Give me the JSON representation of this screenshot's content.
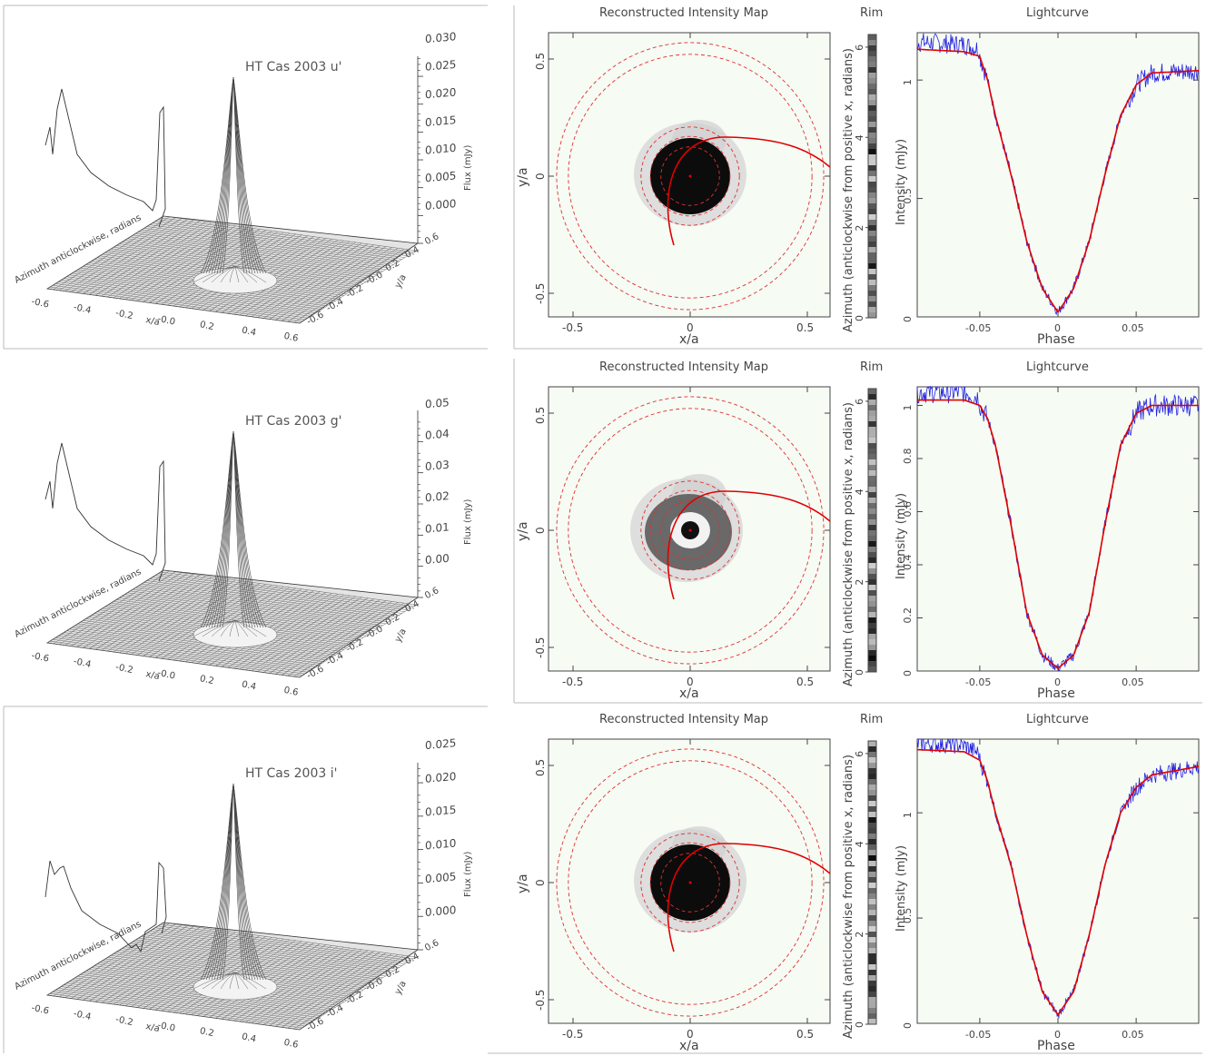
{
  "panel_titles": {
    "map": "Reconstructed Intensity Map",
    "rim": "Rim",
    "lightcurve": "Lightcurve"
  },
  "map_axes": {
    "xlabel": "x/a",
    "ylabel": "y/a",
    "ticks": [
      -0.5,
      0,
      0.5
    ],
    "tick_labels": [
      "-0.5",
      "0",
      "0.5"
    ]
  },
  "rim_axis": {
    "label": "Azimuth (anticlockwise from positive x, radians)",
    "ticks": [
      0,
      2,
      4,
      6
    ],
    "tick_labels": [
      "0",
      "2",
      "4",
      "6"
    ]
  },
  "lightcurve_axes": {
    "xlabel": "Phase",
    "ylabel": "Intensity (mJy)",
    "xticks": [
      -0.05,
      0,
      0.05
    ],
    "xtick_labels": [
      "-0.05",
      "0",
      "0.05"
    ]
  },
  "surface_axes": {
    "flux_label": "Flux (mJy)",
    "azimuth_label": "Azimuth anticlockwise, radians",
    "x_label": "x/a",
    "y_label": "y/a",
    "xy_ticks": [
      -0.6,
      -0.4,
      -0.2,
      -0.0,
      0.2,
      0.4,
      0.6
    ],
    "xy_tick_labels": [
      "-0.6",
      "-0.4",
      "-0.2",
      "-0.0",
      "0.2",
      "0.4",
      "0.6"
    ],
    "y_tick_labels_back": [
      "-0.6",
      "-0.4",
      "-0.2",
      "-0.0",
      "0.2",
      "0.4",
      "0.6"
    ]
  },
  "colors": {
    "model": "#e00000",
    "data": "#2020e0",
    "rings": "#e03030",
    "panel_bg": "#f6fbf4"
  },
  "rows": [
    {
      "surface_title": "HT Cas 2003 u'",
      "flux_ticks": [
        0.0,
        0.005,
        0.01,
        0.015,
        0.02,
        0.025,
        0.03
      ],
      "flux_tick_labels": [
        "0.000",
        "0.005",
        "0.010",
        "0.015",
        "0.020",
        "0.025",
        "0.030"
      ],
      "lc_yticks": [
        0,
        0.5,
        1
      ],
      "lc_ytick_labels": [
        "0",
        "0.5",
        "1"
      ],
      "lc_ymax": 1.2,
      "chart_data": {
        "type": "line",
        "xlabel": "Phase",
        "ylabel": "Intensity (mJy)",
        "xlim": [
          -0.09,
          0.09
        ],
        "ylim": [
          0,
          1.2
        ],
        "series": [
          {
            "name": "model",
            "x": [
              -0.09,
              -0.06,
              -0.05,
              -0.045,
              -0.04,
              -0.03,
              -0.02,
              -0.01,
              0,
              0.01,
              0.02,
              0.03,
              0.04,
              0.05,
              0.06,
              0.09
            ],
            "values": [
              1.13,
              1.12,
              1.1,
              1.0,
              0.85,
              0.6,
              0.32,
              0.12,
              0.02,
              0.12,
              0.32,
              0.6,
              0.85,
              0.98,
              1.03,
              1.04
            ]
          }
        ]
      }
    },
    {
      "surface_title": "HT Cas 2003 g'",
      "flux_ticks": [
        0.0,
        0.01,
        0.02,
        0.03,
        0.04,
        0.05
      ],
      "flux_tick_labels": [
        "0.00",
        "0.01",
        "0.02",
        "0.03",
        "0.04",
        "0.05"
      ],
      "lc_yticks": [
        0,
        0.2,
        0.4,
        0.6,
        0.8,
        1
      ],
      "lc_ytick_labels": [
        "0",
        "0.2",
        "0.4",
        "0.6",
        "0.8",
        "1"
      ],
      "lc_ymax": 1.07,
      "chart_data": {
        "type": "line",
        "xlabel": "Phase",
        "ylabel": "Intensity (mJy)",
        "xlim": [
          -0.09,
          0.09
        ],
        "ylim": [
          0,
          1.07
        ],
        "series": [
          {
            "name": "model",
            "x": [
              -0.09,
              -0.06,
              -0.05,
              -0.045,
              -0.04,
              -0.03,
              -0.02,
              -0.01,
              0,
              0.01,
              0.02,
              0.03,
              0.04,
              0.05,
              0.06,
              0.09
            ],
            "values": [
              1.02,
              1.02,
              1.0,
              0.95,
              0.85,
              0.55,
              0.22,
              0.06,
              0.01,
              0.06,
              0.22,
              0.55,
              0.85,
              0.97,
              1.0,
              1.0
            ]
          }
        ]
      }
    },
    {
      "surface_title": "HT Cas 2003 i'",
      "flux_ticks": [
        0.0,
        0.005,
        0.01,
        0.015,
        0.02,
        0.025
      ],
      "flux_tick_labels": [
        "0.000",
        "0.005",
        "0.010",
        "0.015",
        "0.020",
        "0.025"
      ],
      "lc_yticks": [
        0,
        0.5,
        1
      ],
      "lc_ytick_labels": [
        "0",
        "0.5",
        "1"
      ],
      "lc_ymax": 1.35,
      "chart_data": {
        "type": "line",
        "xlabel": "Phase",
        "ylabel": "Intensity (mJy)",
        "xlim": [
          -0.09,
          0.09
        ],
        "ylim": [
          0,
          1.35
        ],
        "series": [
          {
            "name": "model",
            "x": [
              -0.09,
              -0.06,
              -0.05,
              -0.045,
              -0.04,
              -0.03,
              -0.02,
              -0.01,
              0,
              0.01,
              0.02,
              0.03,
              0.04,
              0.05,
              0.06,
              0.09
            ],
            "values": [
              1.3,
              1.29,
              1.25,
              1.15,
              1.0,
              0.75,
              0.42,
              0.15,
              0.04,
              0.15,
              0.42,
              0.75,
              1.0,
              1.12,
              1.18,
              1.22
            ]
          }
        ]
      }
    }
  ]
}
